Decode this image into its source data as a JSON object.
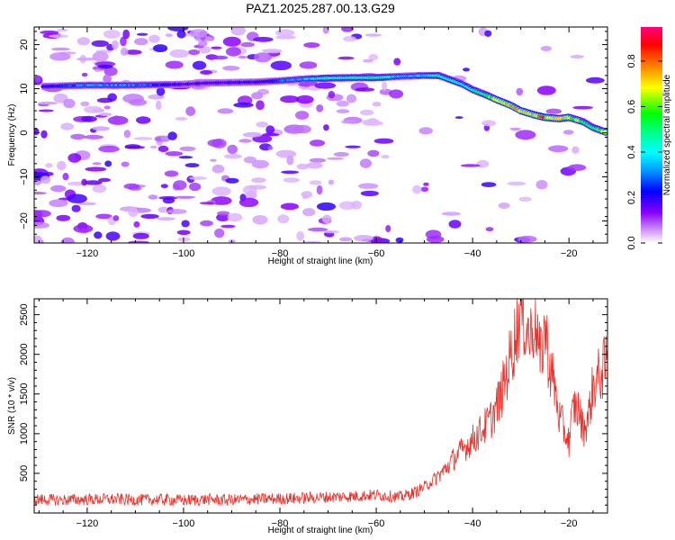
{
  "title": "PAZ1.2025.287.00.13.G29",
  "chart_data": [
    {
      "type": "heatmap",
      "xlabel": "Height of straight line (km)",
      "ylabel": "Frequency (Hz)",
      "xlim": [
        -131,
        -12
      ],
      "ylim": [
        -25,
        24
      ],
      "xticks": [
        -120,
        -100,
        -80,
        -60,
        -40,
        -20
      ],
      "yticks": [
        -20,
        -10,
        0,
        10,
        20
      ],
      "colorbar": {
        "label": "Normalized spectral amplitude",
        "range": [
          0,
          0.95
        ],
        "ticks": [
          0.0,
          0.2,
          0.4,
          0.6,
          0.8
        ]
      },
      "ridge": {
        "x": [
          -129,
          -120,
          -110,
          -100,
          -95,
          -85,
          -80,
          -75,
          -70,
          -65,
          -60,
          -55,
          -50,
          -47,
          -45,
          -42,
          -40,
          -37,
          -35,
          -32,
          -30,
          -27,
          -25,
          -22,
          -20,
          -17,
          -15,
          -12
        ],
        "freq": [
          10.5,
          10.8,
          10.8,
          11.0,
          11.3,
          11.5,
          11.8,
          12.2,
          12.4,
          12.5,
          12.5,
          12.8,
          13.0,
          13.0,
          12.2,
          11.0,
          9.8,
          8.5,
          7.5,
          6.2,
          5.0,
          4.0,
          3.5,
          3.2,
          3.5,
          2.5,
          1.2,
          0.0
        ],
        "amplitude": [
          0.2,
          0.35,
          0.35,
          0.2,
          0.2,
          0.2,
          0.3,
          0.35,
          0.5,
          0.5,
          0.55,
          0.35,
          0.4,
          0.5,
          0.5,
          0.45,
          0.5,
          0.6,
          0.7,
          0.75,
          0.8,
          0.8,
          0.85,
          0.75,
          0.7,
          0.6,
          0.55,
          0.7
        ]
      }
    },
    {
      "type": "line",
      "xlabel": "Height of straight line (km)",
      "ylabel": "SNR (10 * v/v)",
      "xlim": [
        -131,
        -12
      ],
      "ylim": [
        0,
        2700
      ],
      "xticks": [
        -120,
        -100,
        -80,
        -60,
        -40,
        -20
      ],
      "yticks": [
        500,
        1000,
        1500,
        2000,
        2500
      ],
      "color": "#e8312b",
      "series": [
        {
          "name": "SNR",
          "x": [
            -131,
            -125,
            -120,
            -115,
            -110,
            -105,
            -100,
            -95,
            -90,
            -85,
            -80,
            -75,
            -70,
            -65,
            -60,
            -55,
            -52,
            -50,
            -48,
            -46,
            -44,
            -42,
            -40,
            -38,
            -36,
            -34,
            -32,
            -30,
            -29,
            -28,
            -27,
            -26,
            -25,
            -24,
            -23,
            -22,
            -21,
            -20,
            -19,
            -18,
            -17,
            -16,
            -15,
            -14,
            -13,
            -12
          ],
          "y": [
            170,
            165,
            170,
            175,
            165,
            170,
            160,
            170,
            165,
            175,
            180,
            190,
            200,
            210,
            230,
            200,
            260,
            330,
            420,
            530,
            680,
            800,
            920,
            1050,
            1200,
            1500,
            2000,
            2550,
            2400,
            2200,
            2550,
            1900,
            2350,
            1850,
            1600,
            1200,
            1050,
            900,
            1350,
            1300,
            1050,
            1200,
            1600,
            1700,
            1800,
            1900
          ]
        }
      ]
    }
  ]
}
